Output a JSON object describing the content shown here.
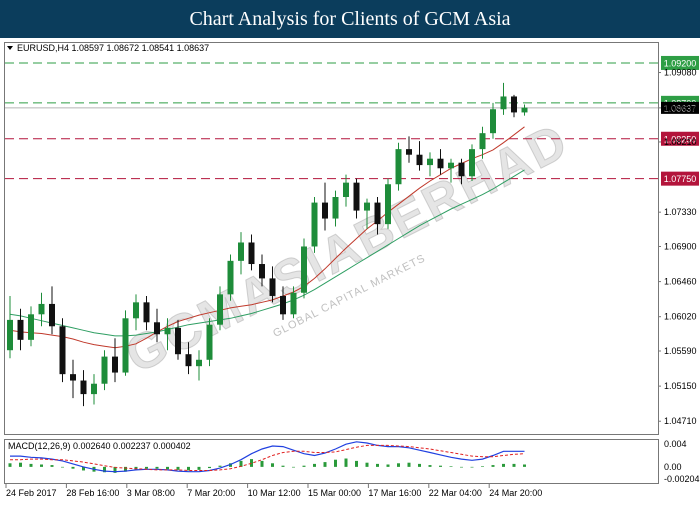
{
  "header": {
    "title": "Chart Analysis for Clients of GCM Asia"
  },
  "watermark": {
    "brand": "GCMASIABERHAD",
    "sub": "GLOBAL CAPITAL MARKETS"
  },
  "chart_data": [
    {
      "type": "candlestick",
      "symbol_header": "EURUSD,H4  1.08597 1.08672 1.08541 1.08637",
      "ylim": [
        1.0455,
        1.0945
      ],
      "yticks": [
        "1.09080",
        "1.08637",
        "1.08210",
        "1.07330",
        "1.06900",
        "1.06460",
        "1.06020",
        "1.05590",
        "1.05150",
        "1.04710"
      ],
      "xticks": [
        "24 Feb 2017",
        "28 Feb 16:00",
        "3 Mar 08:00",
        "7 Mar 20:00",
        "10 Mar 12:00",
        "15 Mar 00:00",
        "17 Mar 16:00",
        "22 Mar 04:00",
        "24 Mar 20:00"
      ],
      "current_price": "1.08637",
      "levels": [
        {
          "label": "1.09200",
          "value": 1.092,
          "color": "#2e9e45"
        },
        {
          "label": "1.08700",
          "value": 1.087,
          "color": "#2e9e45"
        },
        {
          "label": "1.08250",
          "value": 1.0825,
          "color": "#b3143b"
        },
        {
          "label": "1.07750",
          "value": 1.0775,
          "color": "#b3143b"
        }
      ],
      "moving_averages": [
        {
          "color": "#c0392b",
          "values": [
            1.0585,
            1.0583,
            1.0582,
            1.0581,
            1.0579,
            1.0577,
            1.0574,
            1.057,
            1.0567,
            1.0565,
            1.0563,
            1.0565,
            1.0568,
            1.0575,
            1.0583,
            1.059,
            1.0596,
            1.06,
            1.0604,
            1.0607,
            1.061,
            1.0613,
            1.0615,
            1.0617,
            1.062,
            1.0623,
            1.0628,
            1.0633,
            1.064,
            1.065,
            1.0662,
            1.0675,
            1.0688,
            1.07,
            1.0712,
            1.0722,
            1.0733,
            1.0743,
            1.0753,
            1.0763,
            1.0772,
            1.078,
            1.0788,
            1.0794,
            1.08,
            1.0805,
            1.0811,
            1.082,
            1.083,
            1.084
          ]
        },
        {
          "color": "#2e9e62",
          "values": [
            1.0605,
            1.0603,
            1.06,
            1.0597,
            1.0594,
            1.0591,
            1.0588,
            1.0585,
            1.0582,
            1.058,
            1.0578,
            1.0578,
            1.0579,
            1.0581,
            1.0583,
            1.0586,
            1.0589,
            1.0592,
            1.0594,
            1.0596,
            1.0598,
            1.06,
            1.0603,
            1.0606,
            1.061,
            1.0614,
            1.0618,
            1.0623,
            1.0629,
            1.0636,
            1.0644,
            1.0652,
            1.066,
            1.0668,
            1.0676,
            1.0684,
            1.0692,
            1.07,
            1.0708,
            1.0716,
            1.0723,
            1.073,
            1.0737,
            1.0743,
            1.0749,
            1.0755,
            1.0762,
            1.077,
            1.0778,
            1.0786
          ]
        }
      ],
      "candles": [
        {
          "o": 1.056,
          "h": 1.0628,
          "l": 1.055,
          "c": 1.0598
        },
        {
          "o": 1.0598,
          "h": 1.0612,
          "l": 1.056,
          "c": 1.0573
        },
        {
          "o": 1.0573,
          "h": 1.0615,
          "l": 1.0565,
          "c": 1.0605
        },
        {
          "o": 1.0605,
          "h": 1.0632,
          "l": 1.059,
          "c": 1.0618
        },
        {
          "o": 1.0618,
          "h": 1.064,
          "l": 1.058,
          "c": 1.059
        },
        {
          "o": 1.059,
          "h": 1.06,
          "l": 1.052,
          "c": 1.053
        },
        {
          "o": 1.053,
          "h": 1.0548,
          "l": 1.05,
          "c": 1.0522
        },
        {
          "o": 1.0522,
          "h": 1.0535,
          "l": 1.049,
          "c": 1.0505
        },
        {
          "o": 1.0505,
          "h": 1.053,
          "l": 1.0492,
          "c": 1.0518
        },
        {
          "o": 1.0518,
          "h": 1.056,
          "l": 1.051,
          "c": 1.0552
        },
        {
          "o": 1.0552,
          "h": 1.0575,
          "l": 1.052,
          "c": 1.0532
        },
        {
          "o": 1.0532,
          "h": 1.061,
          "l": 1.0528,
          "c": 1.06
        },
        {
          "o": 1.06,
          "h": 1.063,
          "l": 1.0585,
          "c": 1.062
        },
        {
          "o": 1.062,
          "h": 1.0628,
          "l": 1.0585,
          "c": 1.0595
        },
        {
          "o": 1.0595,
          "h": 1.0612,
          "l": 1.057,
          "c": 1.058
        },
        {
          "o": 1.058,
          "h": 1.06,
          "l": 1.056,
          "c": 1.0588
        },
        {
          "o": 1.0588,
          "h": 1.0598,
          "l": 1.0548,
          "c": 1.0555
        },
        {
          "o": 1.0555,
          "h": 1.057,
          "l": 1.053,
          "c": 1.054
        },
        {
          "o": 1.054,
          "h": 1.056,
          "l": 1.0522,
          "c": 1.0548
        },
        {
          "o": 1.0548,
          "h": 1.06,
          "l": 1.054,
          "c": 1.0592
        },
        {
          "o": 1.0592,
          "h": 1.064,
          "l": 1.0585,
          "c": 1.063
        },
        {
          "o": 1.063,
          "h": 1.068,
          "l": 1.0622,
          "c": 1.0672
        },
        {
          "o": 1.0672,
          "h": 1.0708,
          "l": 1.0655,
          "c": 1.0695
        },
        {
          "o": 1.0695,
          "h": 1.0705,
          "l": 1.066,
          "c": 1.0668
        },
        {
          "o": 1.0668,
          "h": 1.068,
          "l": 1.064,
          "c": 1.065
        },
        {
          "o": 1.065,
          "h": 1.0665,
          "l": 1.062,
          "c": 1.0628
        },
        {
          "o": 1.0628,
          "h": 1.064,
          "l": 1.0598,
          "c": 1.0605
        },
        {
          "o": 1.0605,
          "h": 1.064,
          "l": 1.06,
          "c": 1.0632
        },
        {
          "o": 1.0632,
          "h": 1.07,
          "l": 1.0625,
          "c": 1.069
        },
        {
          "o": 1.069,
          "h": 1.0752,
          "l": 1.0682,
          "c": 1.0745
        },
        {
          "o": 1.0745,
          "h": 1.077,
          "l": 1.071,
          "c": 1.0725
        },
        {
          "o": 1.0725,
          "h": 1.076,
          "l": 1.0715,
          "c": 1.0752
        },
        {
          "o": 1.0752,
          "h": 1.078,
          "l": 1.074,
          "c": 1.077
        },
        {
          "o": 1.077,
          "h": 1.0775,
          "l": 1.0725,
          "c": 1.0735
        },
        {
          "o": 1.0735,
          "h": 1.075,
          "l": 1.0712,
          "c": 1.0745
        },
        {
          "o": 1.0745,
          "h": 1.0752,
          "l": 1.0705,
          "c": 1.0718
        },
        {
          "o": 1.0718,
          "h": 1.0775,
          "l": 1.0712,
          "c": 1.0768
        },
        {
          "o": 1.0768,
          "h": 1.082,
          "l": 1.076,
          "c": 1.0812
        },
        {
          "o": 1.0812,
          "h": 1.0828,
          "l": 1.0795,
          "c": 1.0805
        },
        {
          "o": 1.0805,
          "h": 1.0822,
          "l": 1.0785,
          "c": 1.0792
        },
        {
          "o": 1.0792,
          "h": 1.0808,
          "l": 1.0778,
          "c": 1.08
        },
        {
          "o": 1.08,
          "h": 1.0812,
          "l": 1.078,
          "c": 1.0788
        },
        {
          "o": 1.0788,
          "h": 1.08,
          "l": 1.077,
          "c": 1.0795
        },
        {
          "o": 1.0795,
          "h": 1.08,
          "l": 1.0768,
          "c": 1.0778
        },
        {
          "o": 1.0778,
          "h": 1.0818,
          "l": 1.0772,
          "c": 1.0812
        },
        {
          "o": 1.0812,
          "h": 1.084,
          "l": 1.08,
          "c": 1.0832
        },
        {
          "o": 1.0832,
          "h": 1.087,
          "l": 1.0825,
          "c": 1.0862
        },
        {
          "o": 1.0862,
          "h": 1.0895,
          "l": 1.0855,
          "c": 1.0878
        },
        {
          "o": 1.0878,
          "h": 1.088,
          "l": 1.0852,
          "c": 1.0858
        },
        {
          "o": 1.0858,
          "h": 1.0868,
          "l": 1.0854,
          "c": 1.0864
        }
      ]
    },
    {
      "type": "macd",
      "label": "MACD(12,26,9) 0.002640 0.002237 0.000402",
      "ylim": [
        -0.0027,
        0.0045
      ],
      "yticks": [
        "0.004",
        "0.00",
        "-0.00204"
      ],
      "histogram": [
        0.0006,
        0.0007,
        0.0005,
        0.0004,
        0.0003,
        0.0,
        -0.0003,
        -0.0006,
        -0.0008,
        -0.0009,
        -0.001,
        -0.0008,
        -0.0005,
        -0.0003,
        -0.0003,
        -0.0004,
        -0.0005,
        -0.0006,
        -0.0005,
        -0.0002,
        0.0002,
        0.0006,
        0.001,
        0.0013,
        0.001,
        0.0006,
        0.0002,
        0.0,
        0.0002,
        0.0005,
        0.0008,
        0.0012,
        0.0014,
        0.001,
        0.0007,
        0.0005,
        0.0004,
        0.0006,
        0.0007,
        0.0005,
        0.0003,
        0.0002,
        0.0001,
        0.0,
        -0.0001,
        0.0001,
        0.0003,
        0.0005,
        0.0005,
        0.0004
      ],
      "macd_line": [
        0.0018,
        0.0018,
        0.0016,
        0.0015,
        0.0013,
        0.001,
        0.0005,
        0.0,
        -0.0004,
        -0.0007,
        -0.0008,
        -0.0007,
        -0.0005,
        -0.0004,
        -0.0004,
        -0.0005,
        -0.0007,
        -0.0008,
        -0.0008,
        -0.0006,
        -0.0002,
        0.0004,
        0.0012,
        0.0022,
        0.003,
        0.0035,
        0.0034,
        0.0028,
        0.0022,
        0.0019,
        0.0023,
        0.003,
        0.0038,
        0.0042,
        0.004,
        0.0036,
        0.0034,
        0.0034,
        0.0032,
        0.0028,
        0.0024,
        0.002,
        0.0016,
        0.0013,
        0.0011,
        0.0013,
        0.0019,
        0.0026,
        0.0026,
        0.0026
      ],
      "signal_line": [
        0.0012,
        0.0012,
        0.0013,
        0.0013,
        0.0012,
        0.0012,
        0.001,
        0.0008,
        0.0005,
        0.0002,
        -0.0001,
        -0.0002,
        -0.0003,
        -0.0004,
        -0.0005,
        -0.0005,
        -0.0005,
        -0.0006,
        -0.0006,
        -0.0006,
        -0.0005,
        -0.0003,
        0.0001,
        0.0006,
        0.0012,
        0.0019,
        0.0024,
        0.0026,
        0.0026,
        0.0024,
        0.0024,
        0.0025,
        0.0029,
        0.0033,
        0.0036,
        0.0036,
        0.0036,
        0.0035,
        0.0034,
        0.0032,
        0.003,
        0.0027,
        0.0024,
        0.0021,
        0.0018,
        0.0017,
        0.0017,
        0.0019,
        0.0021,
        0.0022
      ]
    }
  ]
}
